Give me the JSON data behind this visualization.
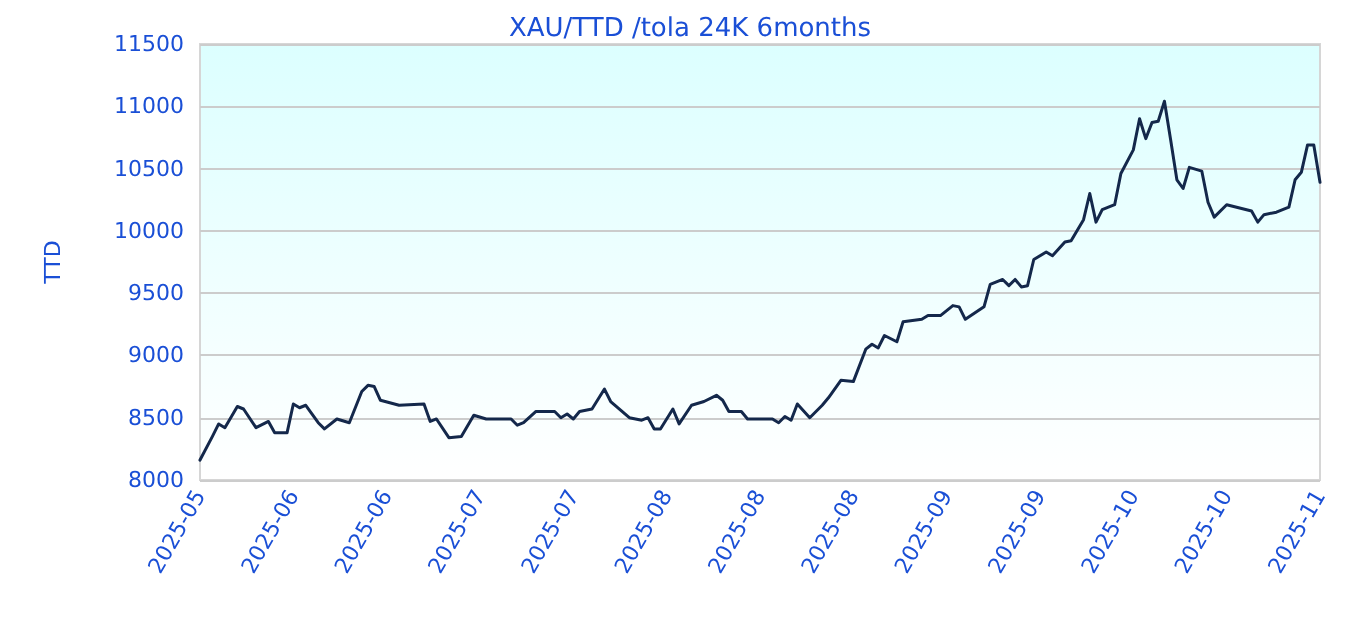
{
  "chart_data": {
    "type": "line",
    "title": "XAU/TTD /tola 24K 6months",
    "ylabel": "TTD",
    "x": [
      "2025-05-18",
      "2025-05-20",
      "2025-05-21",
      "2025-05-22",
      "2025-05-24",
      "2025-05-25",
      "2025-05-27",
      "2025-05-29",
      "2025-05-30",
      "2025-06-01",
      "2025-06-02",
      "2025-06-03",
      "2025-06-04",
      "2025-06-06",
      "2025-06-07",
      "2025-06-09",
      "2025-06-11",
      "2025-06-13",
      "2025-06-14",
      "2025-06-15",
      "2025-06-16",
      "2025-06-19",
      "2025-06-23",
      "2025-06-24",
      "2025-06-25",
      "2025-06-27",
      "2025-06-29",
      "2025-07-01",
      "2025-07-03",
      "2025-07-07",
      "2025-07-08",
      "2025-07-09",
      "2025-07-11",
      "2025-07-14",
      "2025-07-15",
      "2025-07-16",
      "2025-07-17",
      "2025-07-18",
      "2025-07-20",
      "2025-07-22",
      "2025-07-23",
      "2025-07-26",
      "2025-07-28",
      "2025-07-29",
      "2025-07-30",
      "2025-07-31",
      "2025-08-02",
      "2025-08-03",
      "2025-08-05",
      "2025-08-07",
      "2025-08-09",
      "2025-08-10",
      "2025-08-11",
      "2025-08-13",
      "2025-08-14",
      "2025-08-18",
      "2025-08-19",
      "2025-08-20",
      "2025-08-21",
      "2025-08-22",
      "2025-08-24",
      "2025-08-26",
      "2025-08-27",
      "2025-08-29",
      "2025-08-31",
      "2025-09-02",
      "2025-09-03",
      "2025-09-04",
      "2025-09-05",
      "2025-09-07",
      "2025-09-08",
      "2025-09-11",
      "2025-09-12",
      "2025-09-14",
      "2025-09-16",
      "2025-09-17",
      "2025-09-18",
      "2025-09-21",
      "2025-09-22",
      "2025-09-24",
      "2025-09-25",
      "2025-09-26",
      "2025-09-27",
      "2025-09-28",
      "2025-09-29",
      "2025-10-01",
      "2025-10-02",
      "2025-10-04",
      "2025-10-05",
      "2025-10-07",
      "2025-10-08",
      "2025-10-09",
      "2025-10-10",
      "2025-10-12",
      "2025-10-13",
      "2025-10-15",
      "2025-10-16",
      "2025-10-17",
      "2025-10-18",
      "2025-10-19",
      "2025-10-20",
      "2025-10-21",
      "2025-10-22",
      "2025-10-23",
      "2025-10-24",
      "2025-10-26",
      "2025-10-27",
      "2025-10-28",
      "2025-10-30",
      "2025-11-03",
      "2025-11-04",
      "2025-11-05",
      "2025-11-07",
      "2025-11-09",
      "2025-11-10",
      "2025-11-11",
      "2025-11-12",
      "2025-11-13",
      "2025-11-14"
    ],
    "values": [
      8160,
      8350,
      8450,
      8420,
      8590,
      8570,
      8420,
      8470,
      8380,
      8380,
      8610,
      8580,
      8600,
      8460,
      8410,
      8490,
      8460,
      8710,
      8760,
      8750,
      8640,
      8600,
      8610,
      8470,
      8490,
      8340,
      8350,
      8520,
      8490,
      8490,
      8440,
      8460,
      8550,
      8550,
      8500,
      8530,
      8490,
      8550,
      8570,
      8730,
      8630,
      8500,
      8480,
      8500,
      8410,
      8410,
      8570,
      8450,
      8600,
      8630,
      8680,
      8640,
      8550,
      8550,
      8490,
      8490,
      8460,
      8510,
      8480,
      8610,
      8500,
      8600,
      8660,
      8800,
      8790,
      9050,
      9090,
      9060,
      9160,
      9110,
      9270,
      9290,
      9320,
      9320,
      9400,
      9390,
      9290,
      9390,
      9570,
      9610,
      9560,
      9610,
      9550,
      9560,
      9770,
      9830,
      9800,
      9910,
      9920,
      10090,
      10300,
      10070,
      10170,
      10210,
      10460,
      10650,
      10900,
      10740,
      10870,
      10880,
      11040,
      10730,
      10410,
      10340,
      10510,
      10480,
      10230,
      10110,
      10210,
      10160,
      10070,
      10130,
      10150,
      10190,
      10410,
      10470,
      10690,
      10690,
      10390
    ],
    "color": "#14284b",
    "marker": "none",
    "grid": "y",
    "xlim": [
      "2025-05-18",
      "2025-11-14"
    ],
    "xticks": [
      {
        "value": "2025-05-18",
        "label": "2025-05"
      },
      {
        "value": "2025-06-02",
        "label": "2025-06"
      },
      {
        "value": "2025-06-17",
        "label": "2025-06"
      },
      {
        "value": "2025-07-02",
        "label": "2025-07"
      },
      {
        "value": "2025-07-17",
        "label": "2025-07"
      },
      {
        "value": "2025-08-01",
        "label": "2025-08"
      },
      {
        "value": "2025-08-16",
        "label": "2025-08"
      },
      {
        "value": "2025-08-31",
        "label": "2025-08"
      },
      {
        "value": "2025-09-15",
        "label": "2025-09"
      },
      {
        "value": "2025-09-30",
        "label": "2025-09"
      },
      {
        "value": "2025-10-15",
        "label": "2025-10"
      },
      {
        "value": "2025-10-30",
        "label": "2025-10"
      },
      {
        "value": "2025-11-14",
        "label": "2025-11"
      }
    ],
    "ylim": [
      8000,
      11500
    ],
    "yticks": [
      8000,
      8500,
      9000,
      9500,
      10000,
      10500,
      11000,
      11500
    ]
  }
}
